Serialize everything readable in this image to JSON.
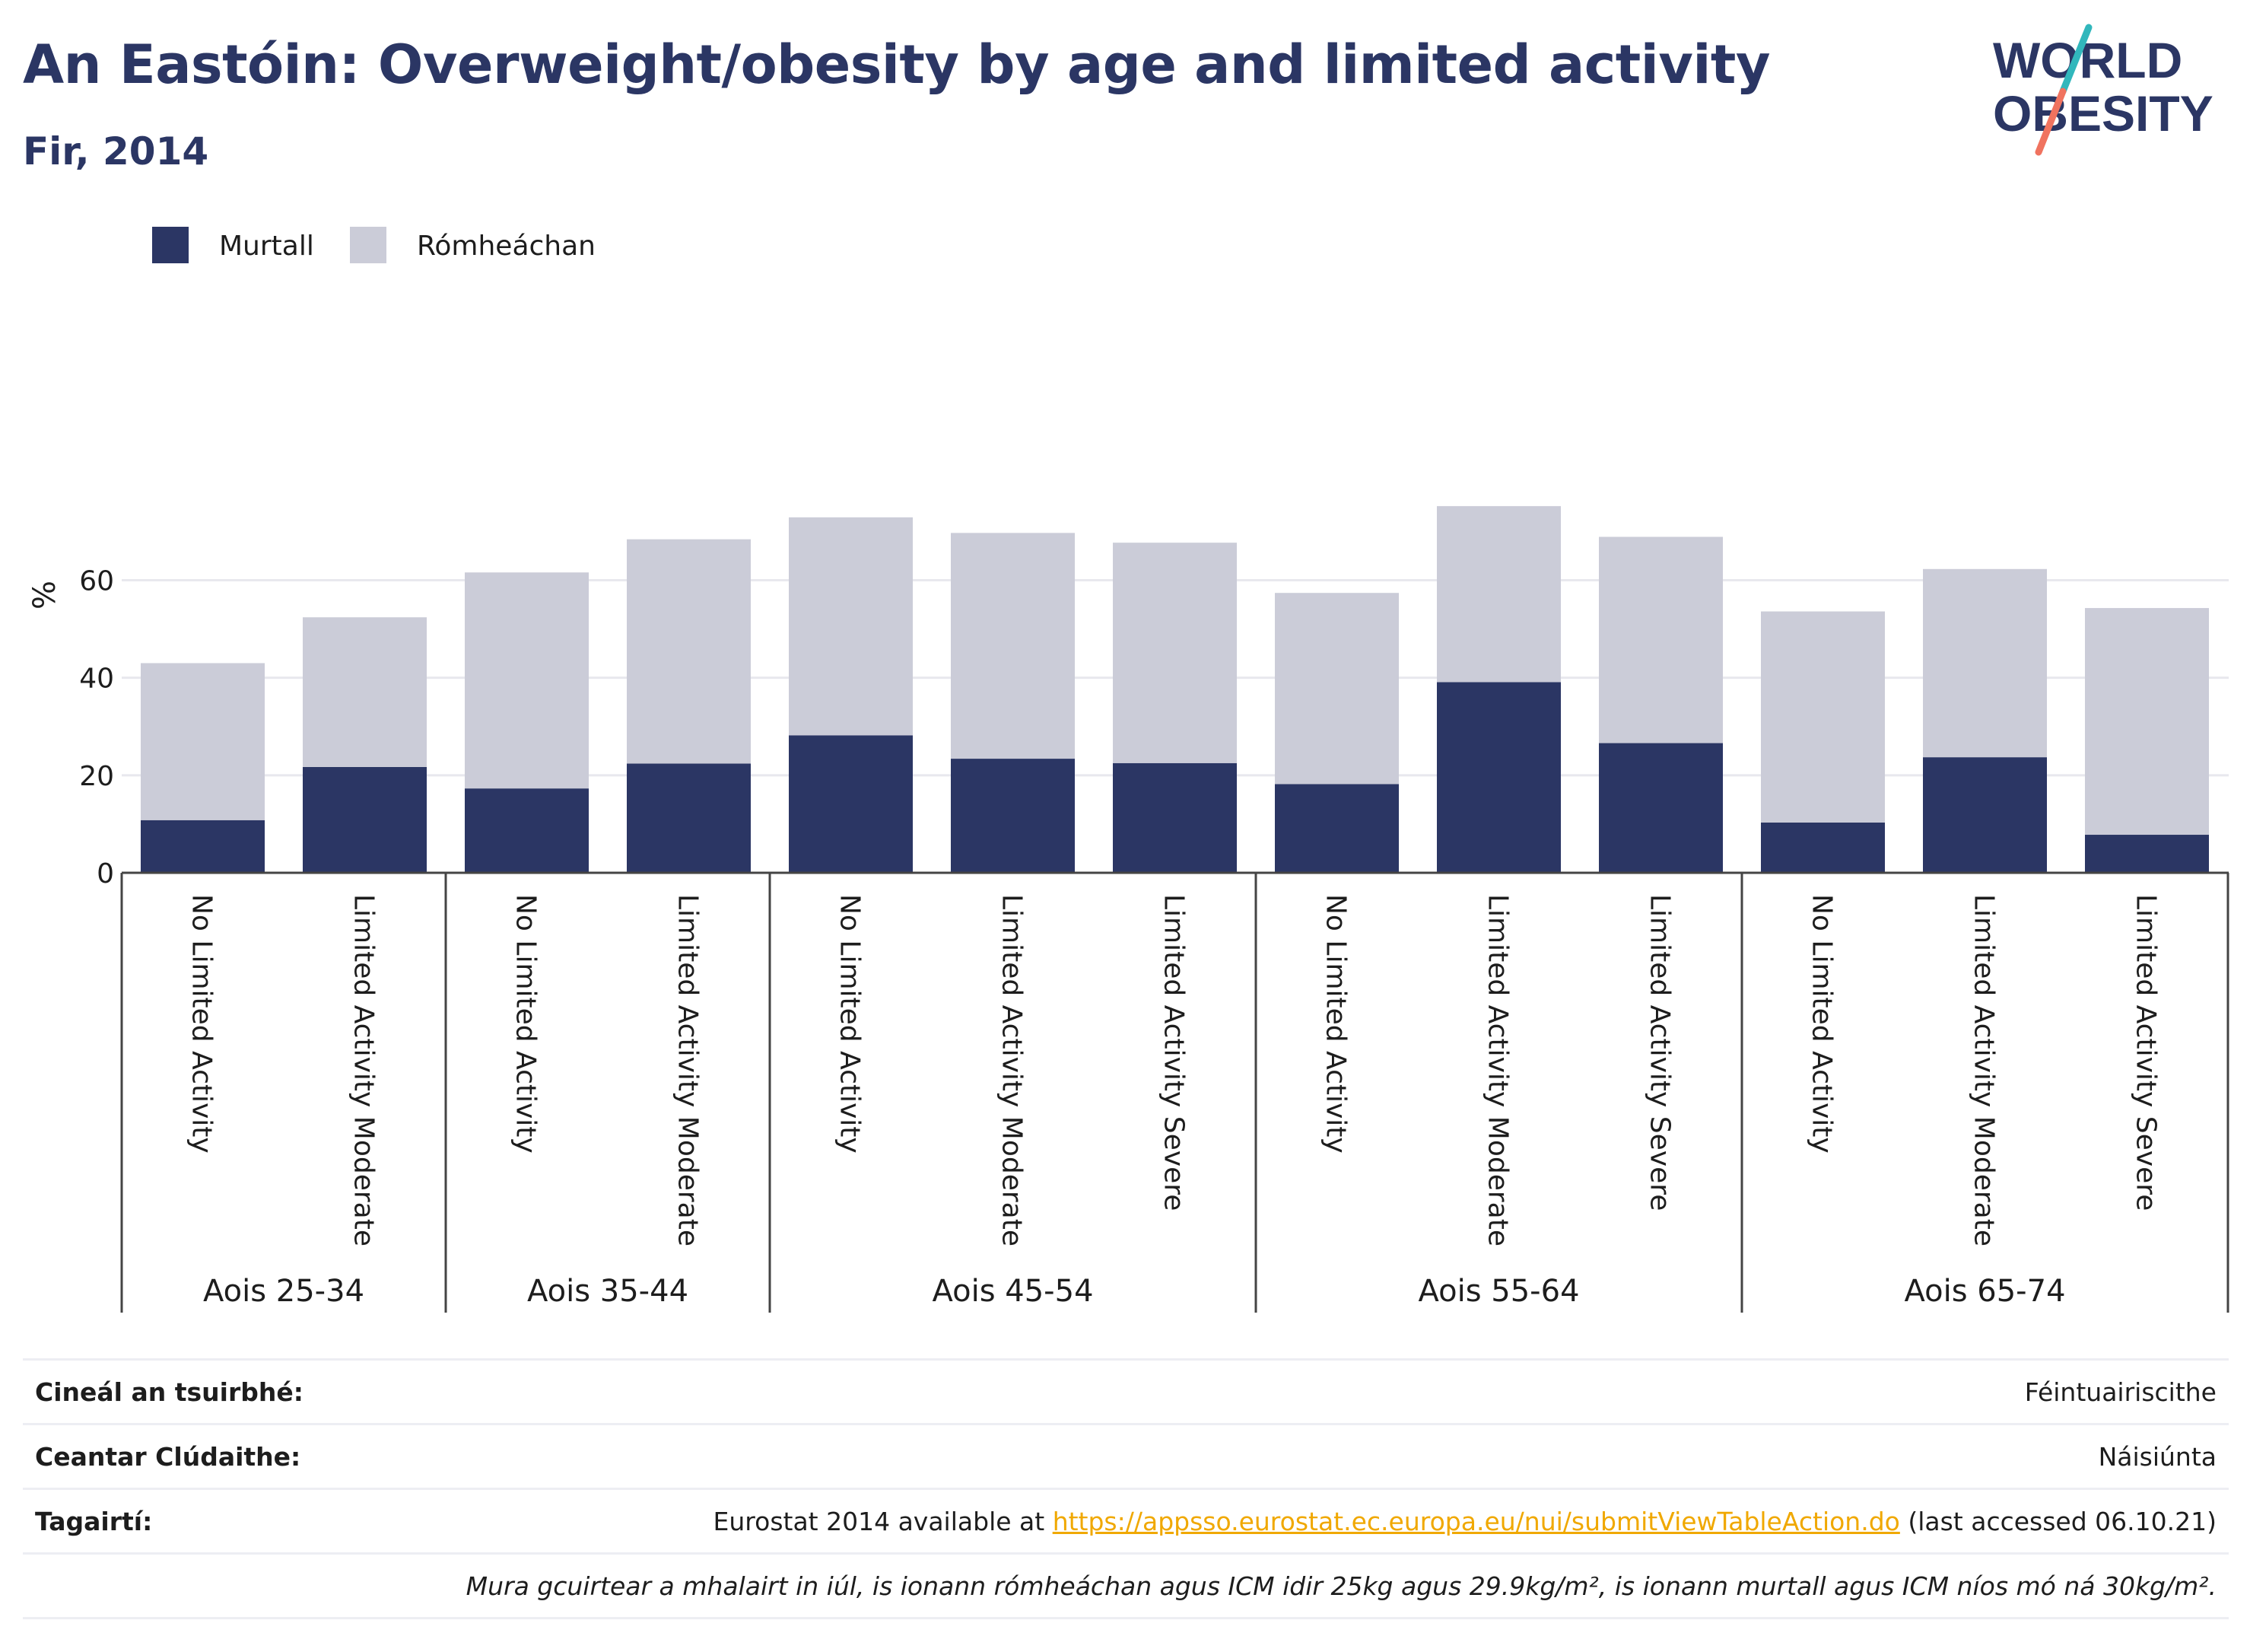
{
  "title": "An Eastóin: Overweight/obesity by age and limited activity",
  "subtitle": "Fir, 2014",
  "logo": {
    "line1": "WORLD",
    "line2": "OBESITY"
  },
  "colors": {
    "obese": "#2b3664",
    "overweight": "#cbccd8",
    "title": "#2b3664",
    "link": "#f0a800"
  },
  "chart_data": {
    "type": "bar",
    "stacked": true,
    "ylabel": "%",
    "ylim": [
      0,
      76
    ],
    "yticks": [
      0,
      20,
      40,
      60
    ],
    "grid": true,
    "legend_position": "top-left",
    "groups": [
      {
        "label": "Aois 25-34",
        "categories": [
          "No Limited Activity",
          "Limited Activity Moderate"
        ]
      },
      {
        "label": "Aois 35-44",
        "categories": [
          "No Limited Activity",
          "Limited Activity Moderate"
        ]
      },
      {
        "label": "Aois 45-54",
        "categories": [
          "No Limited Activity",
          "Limited Activity Moderate",
          "Limited Activity Severe"
        ]
      },
      {
        "label": "Aois 55-64",
        "categories": [
          "No Limited Activity",
          "Limited Activity Moderate",
          "Limited Activity Severe"
        ]
      },
      {
        "label": "Aois 65-74",
        "categories": [
          "No Limited Activity",
          "Limited Activity Moderate",
          "Limited Activity Severe"
        ]
      }
    ],
    "series": [
      {
        "name": "Murtall",
        "values": [
          10.8,
          21.7,
          17.3,
          22.4,
          28.2,
          23.4,
          22.5,
          18.2,
          39.1,
          26.6,
          10.3,
          23.7,
          7.8
        ]
      },
      {
        "name": "Rómheáchan",
        "values": [
          32.2,
          30.7,
          44.3,
          46.0,
          44.7,
          46.3,
          45.2,
          39.2,
          36.1,
          42.3,
          43.3,
          38.6,
          46.5
        ]
      }
    ]
  },
  "info": [
    {
      "label": "Cineál an tsuirbhé:",
      "value": "Féintuairiscithe"
    },
    {
      "label": "Ceantar Clúdaithe:",
      "value": "Náisiúnta"
    },
    {
      "label": "Tagairtí:",
      "prefix": "Eurostat 2014 available at ",
      "link": "https://appsso.eurostat.ec.europa.eu/nui/submitViewTableAction.do",
      "suffix": " (last accessed 06.10.21)"
    },
    {
      "label": "",
      "value": "Mura gcuirtear a mhalairt in iúl, is ionann rómheáchan agus ICM idir 25kg agus 29.9kg/m², is ionann murtall agus ICM níos mó ná 30kg/m²."
    }
  ]
}
